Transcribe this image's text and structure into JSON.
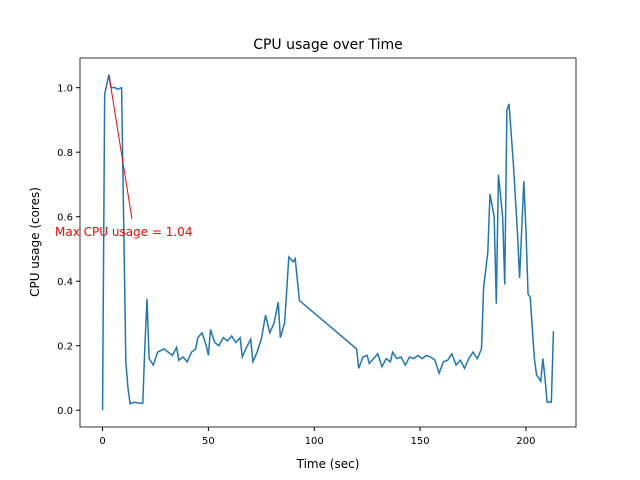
{
  "chart_data": {
    "type": "line",
    "title": "CPU usage over Time",
    "xlabel": "Time (sec)",
    "ylabel": "CPU usage (cores)",
    "x": [
      0,
      1,
      3,
      4,
      5,
      6,
      7,
      9,
      11,
      12,
      13,
      15,
      17,
      19,
      20,
      21,
      22,
      24,
      26,
      29,
      31,
      33,
      35,
      36,
      38,
      40,
      42,
      44,
      45,
      47,
      49,
      50,
      51,
      53,
      55,
      57,
      59,
      61,
      63,
      65,
      66,
      68,
      70,
      71,
      73,
      75,
      77,
      79,
      81,
      83,
      84,
      86,
      88,
      90,
      91,
      93,
      120,
      121,
      123,
      125,
      126,
      128,
      130,
      132,
      134,
      136,
      137,
      139,
      141,
      143,
      145,
      147,
      149,
      151,
      153,
      155,
      157,
      159,
      161,
      163,
      165,
      167,
      169,
      171,
      173,
      175,
      177,
      179,
      180,
      182,
      183,
      185,
      186,
      187,
      189,
      190,
      191,
      192,
      194,
      196,
      197,
      199,
      200,
      201,
      202,
      204,
      205,
      207,
      208,
      209,
      210,
      212,
      213
    ],
    "series": [
      {
        "name": "CPU usage",
        "color": "#1f77b4",
        "values": [
          0.0,
          0.98,
          1.04,
          1.0,
          1.0,
          1.0,
          0.995,
          1.0,
          0.15,
          0.07,
          0.02,
          0.025,
          0.022,
          0.022,
          0.2,
          0.345,
          0.16,
          0.14,
          0.18,
          0.19,
          0.18,
          0.17,
          0.195,
          0.155,
          0.165,
          0.15,
          0.18,
          0.19,
          0.225,
          0.24,
          0.2,
          0.17,
          0.25,
          0.21,
          0.2,
          0.225,
          0.215,
          0.23,
          0.21,
          0.225,
          0.165,
          0.195,
          0.22,
          0.15,
          0.18,
          0.22,
          0.295,
          0.24,
          0.27,
          0.335,
          0.225,
          0.27,
          0.475,
          0.46,
          0.47,
          0.34,
          0.19,
          0.13,
          0.165,
          0.17,
          0.145,
          0.16,
          0.175,
          0.135,
          0.16,
          0.15,
          0.18,
          0.16,
          0.165,
          0.14,
          0.165,
          0.16,
          0.17,
          0.16,
          0.17,
          0.165,
          0.155,
          0.115,
          0.15,
          0.155,
          0.175,
          0.14,
          0.155,
          0.13,
          0.16,
          0.18,
          0.16,
          0.19,
          0.38,
          0.49,
          0.67,
          0.6,
          0.33,
          0.73,
          0.6,
          0.39,
          0.93,
          0.95,
          0.77,
          0.55,
          0.41,
          0.71,
          0.56,
          0.36,
          0.35,
          0.16,
          0.11,
          0.09,
          0.16,
          0.1,
          0.025,
          0.025,
          0.245
        ]
      }
    ],
    "xlim": [
      -10.65,
      223.65
    ],
    "ylim": [
      -0.052,
      1.092
    ],
    "xticks": [
      0,
      50,
      100,
      150,
      200
    ],
    "yticks": [
      {
        "value": 0,
        "label": "0.0"
      },
      0.2,
      0.4,
      0.6,
      0.8,
      {
        "value": 1,
        "label": "1.0"
      }
    ],
    "annotation": {
      "text": "Max CPU usage = 1.04",
      "color": "red"
    }
  }
}
